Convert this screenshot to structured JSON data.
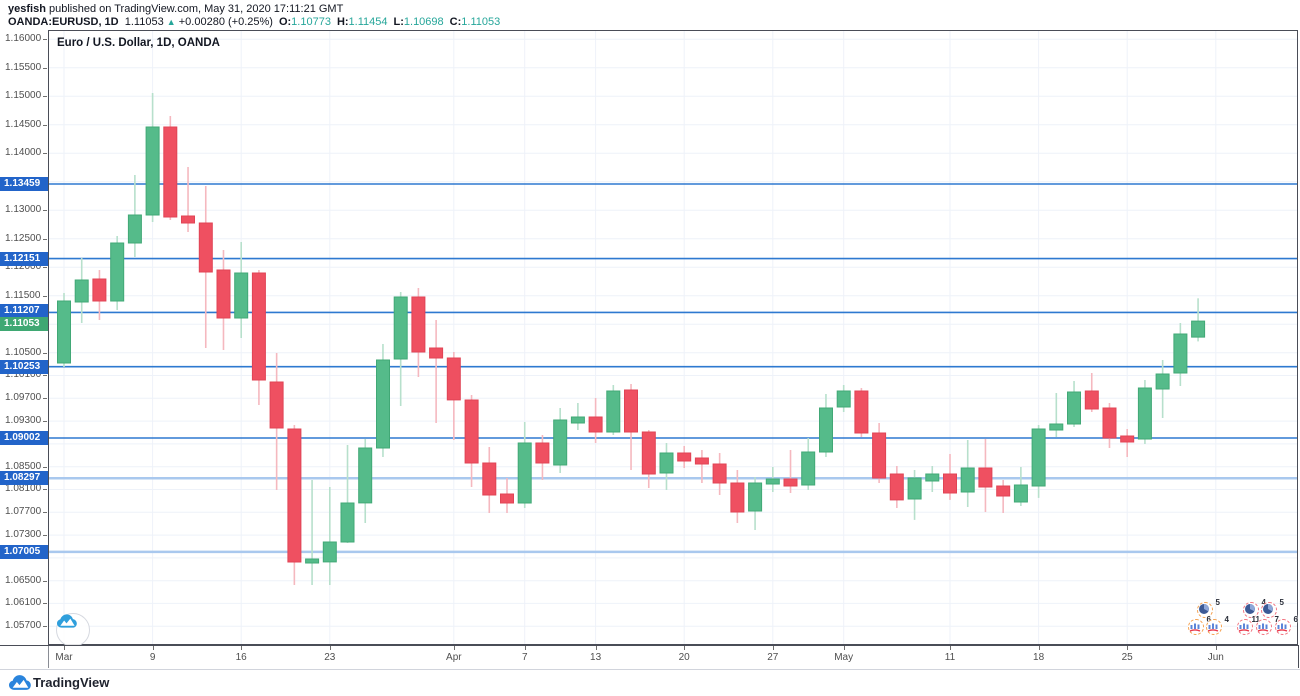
{
  "header": {
    "author": "yesfish",
    "published_suffix": " published on TradingView.com, May 31, 2020 17:11:21 GMT",
    "symbol": "OANDA:EURUSD, 1D",
    "last_price": "1.11053",
    "up_arrow": "▲",
    "change": "+0.00280 (+0.25%)",
    "ohlc": [
      {
        "label": "O:",
        "value": "1.10773"
      },
      {
        "label": "H:",
        "value": "1.11454"
      },
      {
        "label": "L:",
        "value": "1.10698"
      },
      {
        "label": "C:",
        "value": "1.11053"
      }
    ]
  },
  "chart": {
    "title": "Euro / U.S. Dollar, 1D, OANDA"
  },
  "colors": {
    "up_fill": "#55bb8a",
    "up_border": "#41a876",
    "up_wick": "#b7e0cc",
    "down_fill": "#ef5061",
    "down_border": "#e04455",
    "down_wick": "#f5b8bf",
    "level_dark": "#2e79d0",
    "level_light": "#a9c8ee",
    "grid": "#eef2f9",
    "border": "#4a4d57",
    "badge_blue": "#2264c9",
    "badge_green": "#3fa873",
    "value_teal": "#26a69a",
    "logo_blue": "#2a84dc",
    "watermark_blue": "#2f9fdc"
  },
  "price_axis": {
    "ticks": [
      "1.16000",
      "1.15500",
      "1.15000",
      "1.14500",
      "1.14000",
      "1.13000",
      "1.12500",
      "1.12000",
      "1.11500",
      "1.10500",
      "1.10100",
      "1.09700",
      "1.09300",
      "1.08500",
      "1.08100",
      "1.07700",
      "1.07300",
      "1.06500",
      "1.06100",
      "1.05700"
    ],
    "grid_prices": [
      1.16,
      1.155,
      1.15,
      1.145,
      1.14,
      1.135,
      1.13,
      1.125,
      1.12,
      1.115,
      1.11,
      1.105,
      1.101,
      1.097,
      1.093,
      1.089,
      1.085,
      1.081,
      1.077,
      1.073,
      1.069,
      1.065,
      1.061,
      1.057
    ],
    "badges": [
      {
        "value": "1.13459",
        "style": "blue"
      },
      {
        "value": "1.12151",
        "style": "blue"
      },
      {
        "value": "1.11207",
        "style": "blue"
      },
      {
        "value": "1.10253",
        "style": "blue"
      },
      {
        "value": "1.09002",
        "style": "blue"
      },
      {
        "value": "1.08297",
        "style": "blue"
      },
      {
        "value": "1.07005",
        "style": "blue"
      }
    ],
    "current": {
      "value": "1.11053",
      "style": "green"
    }
  },
  "time_axis": {
    "labels": [
      {
        "i": 0,
        "text": "Mar"
      },
      {
        "i": 5,
        "text": "9"
      },
      {
        "i": 10,
        "text": "16"
      },
      {
        "i": 15,
        "text": "23"
      },
      {
        "i": 22,
        "text": "Apr"
      },
      {
        "i": 26,
        "text": "7"
      },
      {
        "i": 30,
        "text": "13"
      },
      {
        "i": 35,
        "text": "20"
      },
      {
        "i": 40,
        "text": "27"
      },
      {
        "i": 44,
        "text": "May"
      },
      {
        "i": 50,
        "text": "11"
      },
      {
        "i": 55,
        "text": "18"
      },
      {
        "i": 60,
        "text": "25"
      },
      {
        "i": 65,
        "text": "Jun"
      }
    ]
  },
  "chart_data": {
    "type": "candlestick",
    "title": "Euro / U.S. Dollar, 1D, OANDA",
    "symbol": "EURUSD",
    "exchange": "OANDA",
    "timeframe": "1D",
    "ylim": [
      1.05371,
      1.16161
    ],
    "grid": true,
    "levels": [
      {
        "price": 1.13459,
        "emphasis": "strong"
      },
      {
        "price": 1.12151,
        "emphasis": "strong"
      },
      {
        "price": 1.11207,
        "emphasis": "strong"
      },
      {
        "price": 1.10253,
        "emphasis": "strong"
      },
      {
        "price": 1.09002,
        "emphasis": "strong"
      },
      {
        "price": 1.08297,
        "emphasis": "light"
      },
      {
        "price": 1.07005,
        "emphasis": "light"
      }
    ],
    "last_close": 1.11053,
    "dates": [
      "2020-03-02",
      "2020-03-03",
      "2020-03-04",
      "2020-03-05",
      "2020-03-06",
      "2020-03-09",
      "2020-03-10",
      "2020-03-11",
      "2020-03-12",
      "2020-03-13",
      "2020-03-16",
      "2020-03-17",
      "2020-03-18",
      "2020-03-19",
      "2020-03-20",
      "2020-03-23",
      "2020-03-24",
      "2020-03-25",
      "2020-03-26",
      "2020-03-27",
      "2020-03-30",
      "2020-03-31",
      "2020-04-01",
      "2020-04-02",
      "2020-04-03",
      "2020-04-06",
      "2020-04-07",
      "2020-04-08",
      "2020-04-09",
      "2020-04-10",
      "2020-04-13",
      "2020-04-14",
      "2020-04-15",
      "2020-04-16",
      "2020-04-17",
      "2020-04-20",
      "2020-04-21",
      "2020-04-22",
      "2020-04-23",
      "2020-04-24",
      "2020-04-27",
      "2020-04-28",
      "2020-04-29",
      "2020-04-30",
      "2020-05-01",
      "2020-05-04",
      "2020-05-05",
      "2020-05-06",
      "2020-05-07",
      "2020-05-08",
      "2020-05-11",
      "2020-05-12",
      "2020-05-13",
      "2020-05-14",
      "2020-05-15",
      "2020-05-18",
      "2020-05-19",
      "2020-05-20",
      "2020-05-21",
      "2020-05-22",
      "2020-05-25",
      "2020-05-26",
      "2020-05-27",
      "2020-05-28",
      "2020-05-29"
    ],
    "ohlc": [
      [
        1.10319,
        1.11547,
        1.10249,
        1.11406
      ],
      [
        1.11389,
        1.12161,
        1.1102,
        1.11775
      ],
      [
        1.11792,
        1.1195,
        1.11073,
        1.11406
      ],
      [
        1.11406,
        1.12547,
        1.11248,
        1.12424
      ],
      [
        1.12424,
        1.13617,
        1.12178,
        1.12915
      ],
      [
        1.12915,
        1.15055,
        1.12792,
        1.14459
      ],
      [
        1.14459,
        1.14652,
        1.12827,
        1.1288
      ],
      [
        1.12898,
        1.13757,
        1.12617,
        1.12775
      ],
      [
        1.12775,
        1.13424,
        1.10582,
        1.11915
      ],
      [
        1.1195,
        1.12301,
        1.10547,
        1.11108
      ],
      [
        1.11108,
        1.12442,
        1.10757,
        1.11898
      ],
      [
        1.11898,
        1.1195,
        1.09582,
        1.10021
      ],
      [
        1.09985,
        1.10494,
        1.08091,
        1.09178
      ],
      [
        1.09161,
        1.09231,
        1.06424,
        1.06828
      ],
      [
        1.0681,
        1.08266,
        1.06424,
        1.0688
      ],
      [
        1.06828,
        1.08143,
        1.06424,
        1.07178
      ],
      [
        1.07178,
        1.0888,
        1.07161,
        1.07863
      ],
      [
        1.07863,
        1.08985,
        1.07512,
        1.08827
      ],
      [
        1.08827,
        1.10652,
        1.08669,
        1.10371
      ],
      [
        1.10389,
        1.11564,
        1.09564,
        1.11477
      ],
      [
        1.11477,
        1.11634,
        1.10073,
        1.10512
      ],
      [
        1.10582,
        1.11073,
        1.09266,
        1.10406
      ],
      [
        1.10406,
        1.10512,
        1.08968,
        1.0967
      ],
      [
        1.0967,
        1.09757,
        1.08143,
        1.08564
      ],
      [
        1.08564,
        1.08845,
        1.07687,
        1.08003
      ],
      [
        1.08021,
        1.08301,
        1.07687,
        1.07863
      ],
      [
        1.07863,
        1.09284,
        1.07775,
        1.08915
      ],
      [
        1.08915,
        1.09055,
        1.08266,
        1.08564
      ],
      [
        1.08529,
        1.09529,
        1.08389,
        1.09319
      ],
      [
        1.09266,
        1.09617,
        1.09143,
        1.09371
      ],
      [
        1.09371,
        1.09705,
        1.08915,
        1.09108
      ],
      [
        1.09108,
        1.09933,
        1.09055,
        1.09828
      ],
      [
        1.09845,
        1.0995,
        1.08442,
        1.09108
      ],
      [
        1.09108,
        1.09143,
        1.08126,
        1.08371
      ],
      [
        1.08389,
        1.08915,
        1.08091,
        1.0874
      ],
      [
        1.0874,
        1.08863,
        1.08477,
        1.086
      ],
      [
        1.08652,
        1.08793,
        1.08214,
        1.08547
      ],
      [
        1.08547,
        1.0874,
        1.08003,
        1.08214
      ],
      [
        1.08214,
        1.08442,
        1.07512,
        1.07705
      ],
      [
        1.07722,
        1.08319,
        1.07389,
        1.08214
      ],
      [
        1.08196,
        1.08494,
        1.08056,
        1.08284
      ],
      [
        1.08284,
        1.08793,
        1.08038,
        1.08161
      ],
      [
        1.08178,
        1.09003,
        1.08091,
        1.08757
      ],
      [
        1.08757,
        1.09775,
        1.08669,
        1.09529
      ],
      [
        1.09547,
        1.09933,
        1.09459,
        1.09828
      ],
      [
        1.09828,
        1.0988,
        1.0902,
        1.09091
      ],
      [
        1.09091,
        1.09266,
        1.08214,
        1.08301
      ],
      [
        1.08371,
        1.08512,
        1.07775,
        1.07916
      ],
      [
        1.07933,
        1.08442,
        1.07565,
        1.08301
      ],
      [
        1.08249,
        1.08512,
        1.08056,
        1.08371
      ],
      [
        1.08371,
        1.08722,
        1.07916,
        1.08038
      ],
      [
        1.08056,
        1.08968,
        1.07793,
        1.08477
      ],
      [
        1.08477,
        1.08985,
        1.07705,
        1.08143
      ],
      [
        1.08161,
        1.08266,
        1.07687,
        1.07986
      ],
      [
        1.0788,
        1.08494,
        1.0781,
        1.08178
      ],
      [
        1.08161,
        1.09231,
        1.07951,
        1.09161
      ],
      [
        1.09143,
        1.09792,
        1.0902,
        1.09249
      ],
      [
        1.09249,
        1.10003,
        1.09196,
        1.0981
      ],
      [
        1.09828,
        1.10143,
        1.09459,
        1.09512
      ],
      [
        1.09529,
        1.09617,
        1.08827,
        1.09003
      ],
      [
        1.09038,
        1.09161,
        1.08669,
        1.08933
      ],
      [
        1.08985,
        1.10021,
        1.08898,
        1.0988
      ],
      [
        1.09863,
        1.10371,
        1.09354,
        1.10126
      ],
      [
        1.10143,
        1.1102,
        1.09915,
        1.10827
      ],
      [
        1.10773,
        1.11454,
        1.10698,
        1.11053
      ]
    ]
  },
  "reactions": {
    "clusters": [
      {
        "ring": "#f5a14f",
        "items": [
          {
            "glyph": "pie",
            "count": "5",
            "dx": 9,
            "dy": 0
          },
          {
            "glyph": "chart",
            "count": "6",
            "dx": 0,
            "dy": 17
          },
          {
            "glyph": "chart",
            "count": "4",
            "dx": 18,
            "dy": 17
          }
        ]
      },
      {
        "ring": "#f2737f",
        "items": [
          {
            "glyph": "pie",
            "count": "4",
            "dx": 6,
            "dy": 0
          },
          {
            "glyph": "pie",
            "count": "5",
            "dx": 24,
            "dy": 0
          },
          {
            "glyph": "chart",
            "count": "11",
            "dx": 0,
            "dy": 17
          },
          {
            "glyph": "chart",
            "count": "7",
            "dx": 19,
            "dy": 17
          },
          {
            "glyph": "chart",
            "count": "6",
            "dx": 38,
            "dy": 17
          }
        ]
      }
    ]
  },
  "footer": {
    "brand": "TradingView"
  }
}
